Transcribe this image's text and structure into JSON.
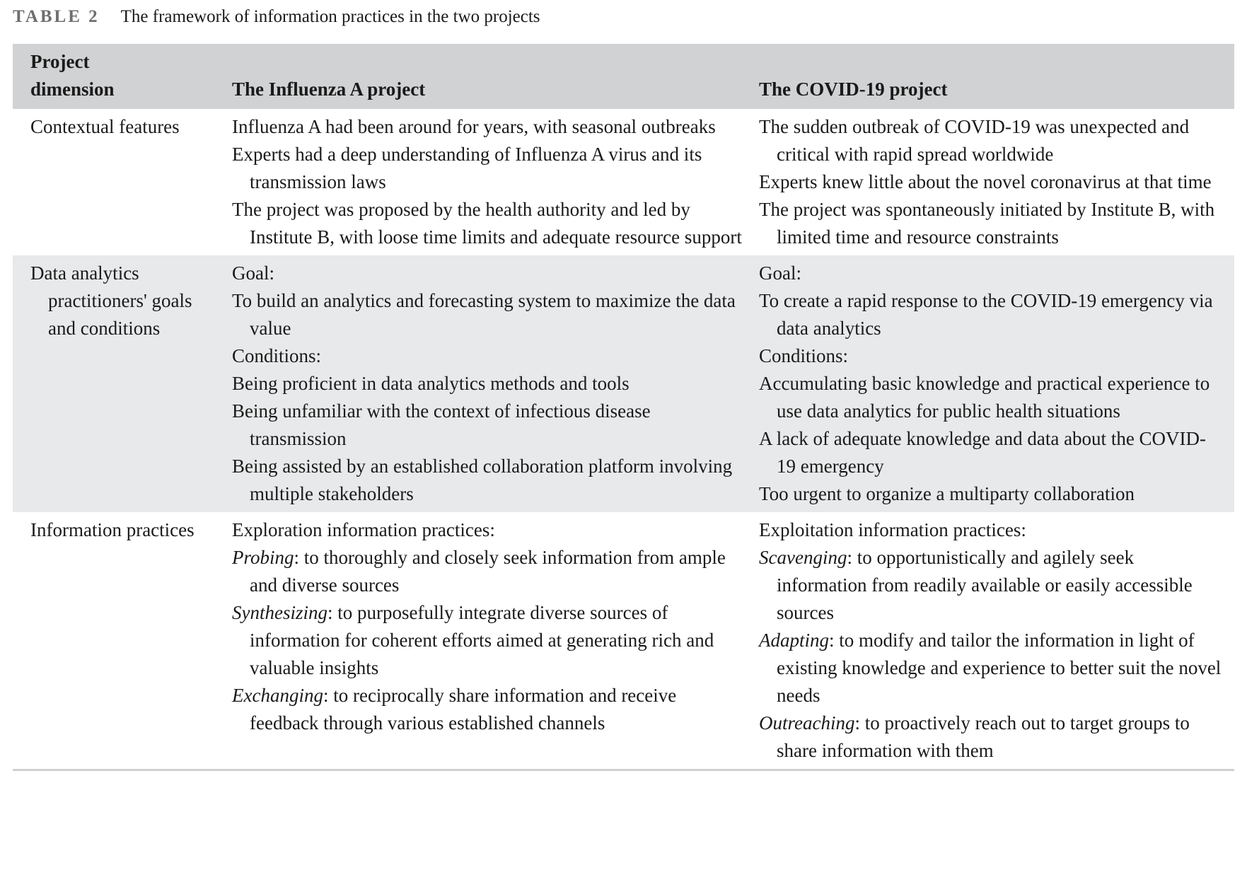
{
  "caption": {
    "label": "TABLE 2",
    "title": "The framework of information practices in the two projects"
  },
  "header": {
    "dimension": "Project dimension",
    "col_a": "The Influenza A project",
    "col_b": "The COVID-19 project"
  },
  "rows": [
    {
      "dimension": "Contextual features",
      "shaded": false,
      "a": [
        {
          "text": "Influenza A had been around for years, with seasonal outbreaks"
        },
        {
          "text": "Experts had a deep understanding of Influenza A virus and its transmission laws"
        },
        {
          "text": "The project was proposed by the health authority and led by Institute B, with loose time limits and adequate resource support"
        }
      ],
      "b": [
        {
          "text": "The sudden outbreak of COVID-19 was unexpected and critical with rapid spread worldwide"
        },
        {
          "text": "Experts knew little about the novel coronavirus at that time"
        },
        {
          "text": "The project was spontaneously initiated by Institute B, with limited time and resource constraints"
        }
      ]
    },
    {
      "dimension": "Data analytics practitioners' goals and conditions",
      "shaded": true,
      "a": [
        {
          "text": "Goal:"
        },
        {
          "text": "To build an analytics and forecasting system to maximize the data value"
        },
        {
          "text": "Conditions:"
        },
        {
          "text": "Being proficient in data analytics methods and tools"
        },
        {
          "text": "Being unfamiliar with the context of infectious disease transmission"
        },
        {
          "text": "Being assisted by an established collaboration platform involving multiple stakeholders"
        }
      ],
      "b": [
        {
          "text": "Goal:"
        },
        {
          "text": "To create a rapid response to the COVID-19 emergency via data analytics"
        },
        {
          "text": "Conditions:"
        },
        {
          "text": "Accumulating basic knowledge and practical experience to use data analytics for public health situations"
        },
        {
          "text": "A lack of adequate knowledge and data about the COVID-19 emergency"
        },
        {
          "text": "Too urgent to organize a multiparty collaboration"
        }
      ]
    },
    {
      "dimension": "Information practices",
      "shaded": false,
      "a": [
        {
          "text": "Exploration information practices:"
        },
        {
          "em": "Probing",
          "text": ": to thoroughly and closely seek information from ample and diverse sources"
        },
        {
          "em": "Synthesizing",
          "text": ": to purposefully integrate diverse sources of information for coherent efforts aimed at generating rich and valuable insights"
        },
        {
          "em": "Exchanging",
          "text": ": to reciprocally share information and receive feedback through various established channels"
        }
      ],
      "b": [
        {
          "text": "Exploitation information practices:"
        },
        {
          "em": "Scavenging",
          "text": ": to opportunistically and agilely seek information from readily available or easily accessible sources"
        },
        {
          "em": "Adapting",
          "text": ": to modify and tailor the information in light of existing knowledge and experience to better suit the novel needs"
        },
        {
          "em": "Outreaching",
          "text": ": to proactively reach out to target groups to share information with them"
        }
      ]
    }
  ]
}
